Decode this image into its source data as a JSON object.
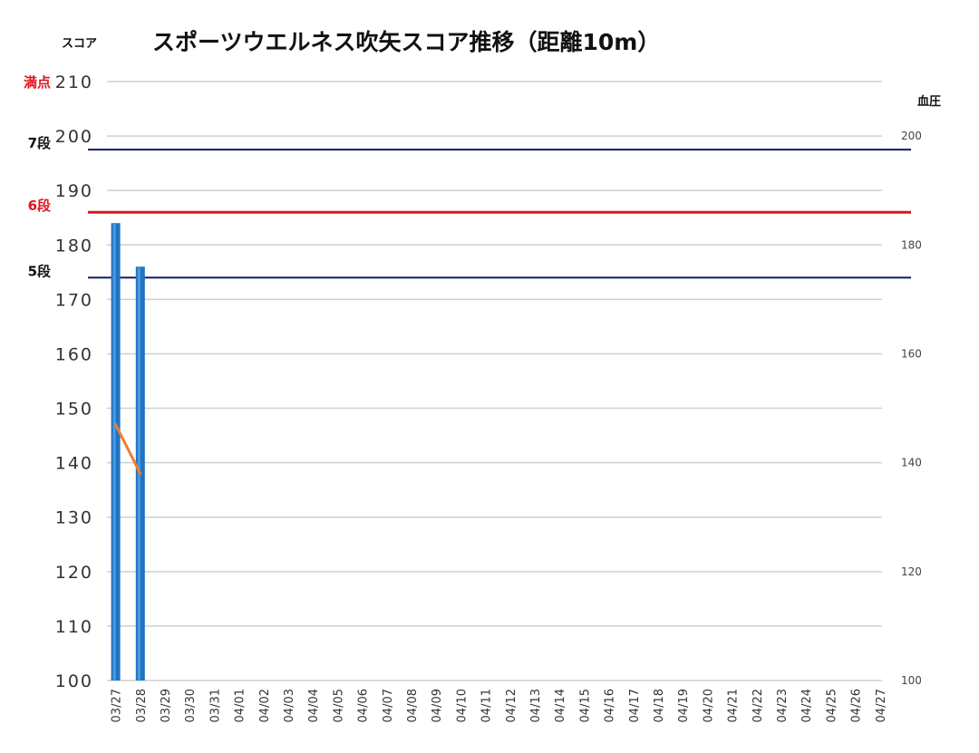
{
  "chart_data": {
    "type": "bar",
    "title": "スポーツウエルネス吹矢スコア推移（距離10m）",
    "ylabel": "スコア",
    "y2label": "血圧",
    "ylim": [
      100,
      210
    ],
    "y2lim": [
      100,
      210
    ],
    "yticks": [
      "100",
      "110",
      "120",
      "130",
      "140",
      "150",
      "160",
      "170",
      "180",
      "190",
      "200",
      "210"
    ],
    "y2ticks": [
      "100",
      "120",
      "140",
      "160",
      "180",
      "200"
    ],
    "grid": true,
    "categories": [
      "03/27",
      "03/28",
      "03/29",
      "03/30",
      "03/31",
      "04/01",
      "04/02",
      "04/03",
      "04/04",
      "04/05",
      "04/06",
      "04/07",
      "04/08",
      "04/09",
      "04/10",
      "04/11",
      "04/12",
      "04/13",
      "04/14",
      "04/15",
      "04/16",
      "04/17",
      "04/18",
      "04/19",
      "04/20",
      "04/21",
      "04/22",
      "04/23",
      "04/24",
      "04/25",
      "04/26",
      "04/27"
    ],
    "series": [
      {
        "type": "bar",
        "axis": "left",
        "color": "#1f73c4",
        "values": [
          184,
          176,
          null,
          null,
          null,
          null,
          null,
          null,
          null,
          null,
          null,
          null,
          null,
          null,
          null,
          null,
          null,
          null,
          null,
          null,
          null,
          null,
          null,
          null,
          null,
          null,
          null,
          null,
          null,
          null,
          null,
          null
        ]
      },
      {
        "type": "line",
        "axis": "right",
        "color": "#ed7d31",
        "values": [
          147,
          138,
          null,
          null,
          null,
          null,
          null,
          null,
          null,
          null,
          null,
          null,
          null,
          null,
          null,
          null,
          null,
          null,
          null,
          null,
          null,
          null,
          null,
          null,
          null,
          null,
          null,
          null,
          null,
          null,
          null,
          null
        ]
      }
    ],
    "reference_lines": [
      {
        "label": "満点",
        "value": 210,
        "color": "#e0141e",
        "draw_line": false
      },
      {
        "label": "7段",
        "value": 197.5,
        "color": "#0d1b5e",
        "label_color": "#111111",
        "draw_line": true
      },
      {
        "label": "6段",
        "value": 186,
        "color": "#e0141e",
        "label_color": "#e0141e",
        "draw_line": true
      },
      {
        "label": "5段",
        "value": 174,
        "color": "#0d1b5e",
        "label_color": "#111111",
        "draw_line": true
      }
    ]
  }
}
